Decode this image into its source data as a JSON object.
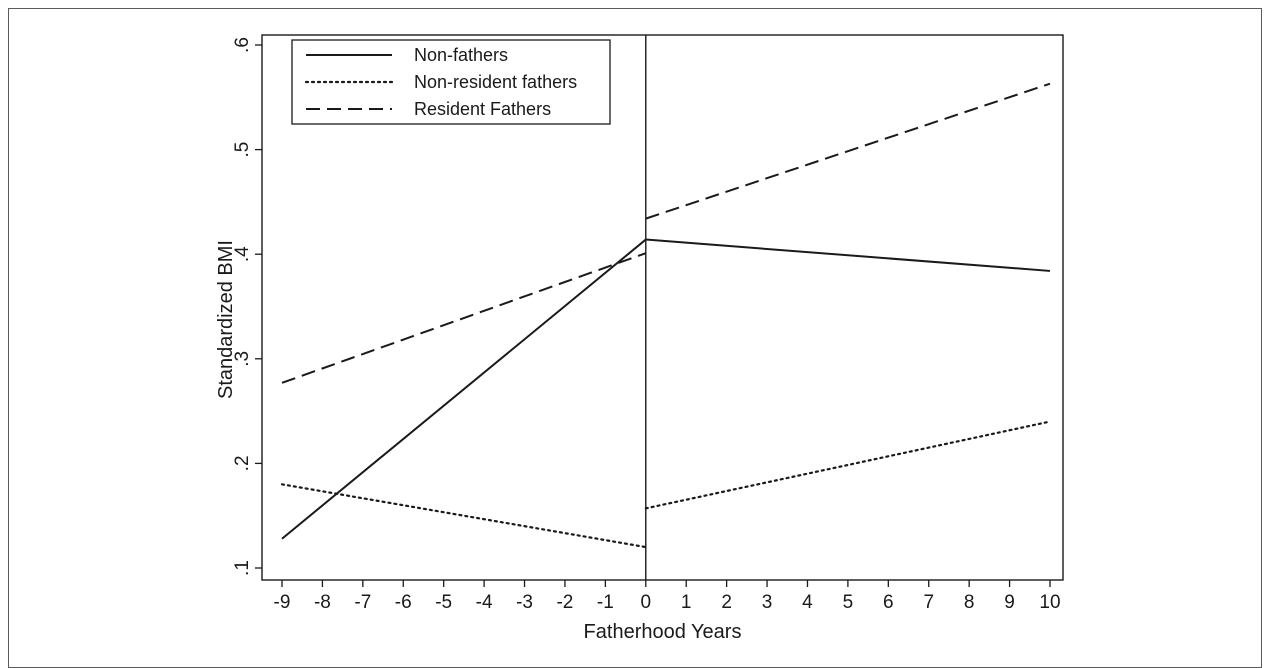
{
  "chart_data": {
    "type": "line",
    "title": "",
    "xlabel": "Fatherhood Years",
    "ylabel": "Standardized BMI",
    "xlim": [
      -9,
      10
    ],
    "ylim": [
      0.1,
      0.6
    ],
    "x_ticks": [
      "-9",
      "-8",
      "-7",
      "-6",
      "-5",
      "-4",
      "-3",
      "-2",
      "-1",
      "0",
      "1",
      "2",
      "3",
      "4",
      "5",
      "6",
      "7",
      "8",
      "9",
      "10"
    ],
    "y_ticks": [
      ".1",
      ".2",
      ".3",
      ".4",
      ".5",
      ".6"
    ],
    "y_tick_values": [
      0.1,
      0.2,
      0.3,
      0.4,
      0.5,
      0.6
    ],
    "reference_line_x": 0,
    "grid": false,
    "legend_position": "top-left",
    "series": [
      {
        "name": "Non-fathers",
        "style": "solid",
        "segments": [
          [
            [
              -9,
              0.128
            ],
            [
              0,
              0.414
            ]
          ],
          [
            [
              0,
              0.414
            ],
            [
              10,
              0.384
            ]
          ]
        ]
      },
      {
        "name": "Non-resident fathers",
        "style": "dotted",
        "segments": [
          [
            [
              -9,
              0.18
            ],
            [
              0,
              0.12
            ]
          ],
          [
            [
              0,
              0.157
            ],
            [
              10,
              0.24
            ]
          ]
        ]
      },
      {
        "name": "Resident Fathers",
        "style": "dashed",
        "segments": [
          [
            [
              -9,
              0.277
            ],
            [
              0,
              0.401
            ]
          ],
          [
            [
              0,
              0.434
            ],
            [
              10,
              0.563
            ]
          ]
        ]
      }
    ]
  }
}
